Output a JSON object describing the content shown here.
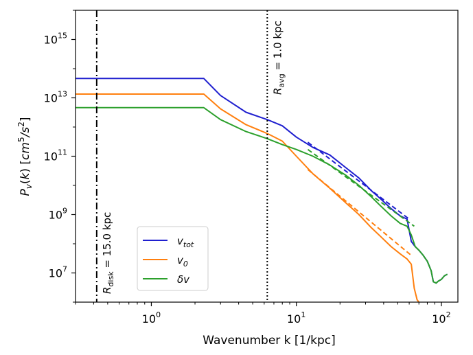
{
  "chart_data": {
    "type": "line",
    "title": "",
    "xlabel": "Wavenumber k [1/kpc]",
    "ylabel": "P_v(k) [cm^5/s^2]",
    "xscale": "log",
    "yscale": "log",
    "xlim": [
      0.3,
      130
    ],
    "ylim": [
      1000000,
      10000000000000000
    ],
    "grid": false,
    "legend_position": "lower-left",
    "x_ticks": [
      {
        "value": 1,
        "base": "10",
        "exp": "0"
      },
      {
        "value": 10,
        "base": "10",
        "exp": "1"
      },
      {
        "value": 100,
        "base": "10",
        "exp": "2"
      }
    ],
    "y_ticks": [
      {
        "value": 10000000,
        "base": "10",
        "exp": "7"
      },
      {
        "value": 1000000000,
        "base": "10",
        "exp": "9"
      },
      {
        "value": 100000000000,
        "base": "10",
        "exp": "11"
      },
      {
        "value": 10000000000000,
        "base": "10",
        "exp": "13"
      },
      {
        "value": 1000000000000000,
        "base": "10",
        "exp": "15"
      }
    ],
    "vlines": [
      {
        "name": "R_disk",
        "x": 0.42,
        "style": "dashdot",
        "label_main": "R",
        "label_sub": "disk",
        "label_rest": " = 15.0 kpc"
      },
      {
        "name": "R_avg",
        "x": 6.3,
        "style": "dotted",
        "label_main": "R",
        "label_sub": "avg",
        "label_rest": " = 1.0 kpc"
      }
    ],
    "series": [
      {
        "name": "v_tot",
        "legend_main": "v",
        "legend_sub": "tot",
        "color": "#1f1fcf",
        "x": [
          0.3,
          0.42,
          1.0,
          2.3,
          3.0,
          4.5,
          6.3,
          8.0,
          10.0,
          13.0,
          17.0,
          22.0,
          27.0,
          33.0,
          38.0,
          45.0,
          52.0,
          58.0,
          62.0,
          66.0,
          70.0,
          75.0,
          80.0,
          85.0,
          88.0,
          92.0,
          95.0,
          100.0,
          105.0,
          110.0
        ],
        "y": [
          46000000000000,
          46000000000000,
          46000000000000,
          46000000000000,
          12000000000000,
          3200000000000,
          1800000000000,
          1100000000000,
          450000000000,
          200000000000,
          110000000000,
          40000000000,
          18000000000,
          6500000000,
          3500000000,
          1600000000,
          900000000,
          700000000,
          120000000,
          80000000,
          60000000,
          40000000,
          25000000,
          12000000,
          5000000,
          4500000,
          5200000,
          6000000,
          8000000,
          9000000
        ]
      },
      {
        "name": "v_0",
        "legend_main": "v",
        "legend_sub": "0",
        "color": "#ff7f0e",
        "x": [
          0.3,
          0.42,
          1.0,
          2.3,
          3.0,
          4.5,
          6.3,
          8.0,
          10.0,
          13.0,
          17.0,
          22.0,
          27.0,
          33.0,
          38.0,
          45.0,
          52.0,
          58.0,
          62.0,
          65.0,
          68.0,
          70.0
        ],
        "y": [
          13500000000000,
          13500000000000,
          13500000000000,
          13500000000000,
          4200000000000,
          1200000000000,
          600000000000,
          330000000000,
          100000000000,
          25000000000,
          8000000000,
          2500000000,
          1000000000,
          350000000,
          180000000,
          80000000,
          45000000,
          30000000,
          20000000,
          3000000,
          1200000,
          1000000
        ]
      },
      {
        "name": "delta_v",
        "legend_main": "δv",
        "legend_sub": "",
        "color": "#2ca02c",
        "x": [
          0.3,
          0.42,
          1.0,
          2.3,
          3.0,
          4.5,
          6.3,
          8.0,
          10.0,
          13.0,
          17.0,
          22.0,
          27.0,
          33.0,
          38.0,
          45.0,
          52.0,
          58.0,
          62.0,
          66.0,
          70.0,
          75.0,
          80.0,
          85.0,
          88.0,
          92.0,
          95.0,
          100.0,
          105.0,
          110.0
        ],
        "y": [
          4600000000000,
          4600000000000,
          4600000000000,
          4600000000000,
          1800000000000,
          700000000000,
          400000000000,
          250000000000,
          170000000000,
          100000000000,
          50000000000,
          22000000000,
          10000000000,
          4000000000,
          2000000000,
          900000000,
          500000000,
          400000000,
          200000000,
          80000000,
          60000000,
          40000000,
          25000000,
          12000000,
          5000000,
          4500000,
          5200000,
          6000000,
          8000000,
          9000000
        ]
      }
    ],
    "fits": [
      {
        "series": "v_tot",
        "color": "#1f1fcf",
        "x": [
          12.0,
          60.0
        ],
        "y": [
          300000000000,
          700000000
        ]
      },
      {
        "series": "v_0",
        "color": "#ff7f0e",
        "x": [
          12.0,
          62.0
        ],
        "y": [
          35000000000,
          40000000
        ]
      },
      {
        "series": "delta_v",
        "color": "#2ca02c",
        "x": [
          12.0,
          65.0
        ],
        "y": [
          170000000000,
          400000000
        ]
      }
    ]
  }
}
